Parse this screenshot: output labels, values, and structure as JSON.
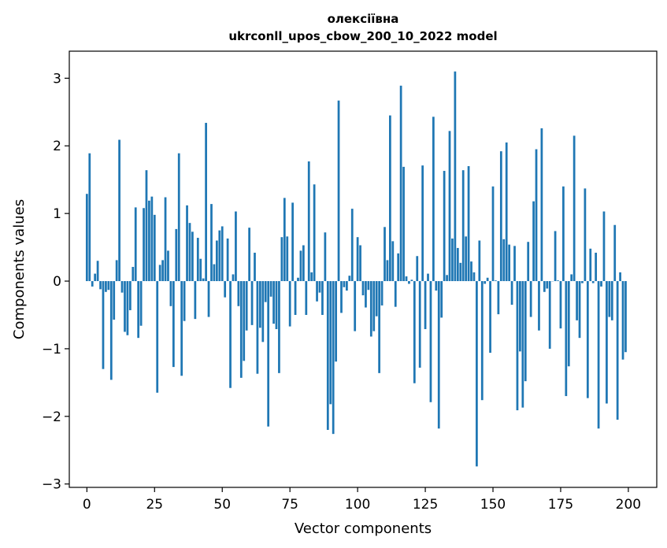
{
  "chart_data": {
    "type": "bar",
    "title": "олексіївна",
    "subtitle": "ukrconll_upos_cbow_200_10_2022 model",
    "xlabel": "Vector components",
    "ylabel": "Components values",
    "xlim": [
      -6.5,
      210.5
    ],
    "ylim": [
      -3.05,
      3.4
    ],
    "xticks": [
      0,
      25,
      50,
      75,
      100,
      125,
      150,
      175,
      200
    ],
    "yticks": [
      -3,
      -2,
      -1,
      0,
      1,
      2,
      3
    ],
    "xtick_labels": [
      "0",
      "25",
      "50",
      "75",
      "100",
      "125",
      "150",
      "175",
      "200"
    ],
    "ytick_labels": [
      "−3",
      "−2",
      "−1",
      "0",
      "1",
      "2",
      "3"
    ],
    "bar_color": "#1f77b4",
    "grid": false,
    "x": [
      0,
      1,
      2,
      3,
      4,
      5,
      6,
      7,
      8,
      9,
      10,
      11,
      12,
      13,
      14,
      15,
      16,
      17,
      18,
      19,
      20,
      21,
      22,
      23,
      24,
      25,
      26,
      27,
      28,
      29,
      30,
      31,
      32,
      33,
      34,
      35,
      36,
      37,
      38,
      39,
      40,
      41,
      42,
      43,
      44,
      45,
      46,
      47,
      48,
      49,
      50,
      51,
      52,
      53,
      54,
      55,
      56,
      57,
      58,
      59,
      60,
      61,
      62,
      63,
      64,
      65,
      66,
      67,
      68,
      69,
      70,
      71,
      72,
      73,
      74,
      75,
      76,
      77,
      78,
      79,
      80,
      81,
      82,
      83,
      84,
      85,
      86,
      87,
      88,
      89,
      90,
      91,
      92,
      93,
      94,
      95,
      96,
      97,
      98,
      99,
      100,
      101,
      102,
      103,
      104,
      105,
      106,
      107,
      108,
      109,
      110,
      111,
      112,
      113,
      114,
      115,
      116,
      117,
      118,
      119,
      120,
      121,
      122,
      123,
      124,
      125,
      126,
      127,
      128,
      129,
      130,
      131,
      132,
      133,
      134,
      135,
      136,
      137,
      138,
      139,
      140,
      141,
      142,
      143,
      144,
      145,
      146,
      147,
      148,
      149,
      150,
      151,
      152,
      153,
      154,
      155,
      156,
      157,
      158,
      159,
      160,
      161,
      162,
      163,
      164,
      165,
      166,
      167,
      168,
      169,
      170,
      171,
      172,
      173,
      174,
      175,
      176,
      177,
      178,
      179,
      180,
      181,
      182,
      183,
      184,
      185,
      186,
      187,
      188,
      189,
      190,
      191,
      192,
      193,
      194,
      195,
      196,
      197,
      198,
      199
    ],
    "values": [
      1.29,
      1.89,
      -0.08,
      0.11,
      0.3,
      -0.12,
      -1.3,
      -0.16,
      -0.13,
      -1.46,
      -0.57,
      0.31,
      2.09,
      -0.17,
      -0.75,
      -0.8,
      -0.43,
      0.21,
      1.09,
      -0.84,
      -0.66,
      1.08,
      1.64,
      1.19,
      1.25,
      0.98,
      -1.65,
      0.24,
      0.31,
      1.24,
      0.45,
      -0.37,
      -1.27,
      0.77,
      1.89,
      -1.4,
      -0.59,
      1.12,
      0.86,
      0.73,
      -0.56,
      0.64,
      0.33,
      0.04,
      2.34,
      -0.53,
      1.14,
      0.25,
      0.6,
      0.75,
      0.81,
      -0.24,
      0.63,
      -1.58,
      0.1,
      1.03,
      -0.37,
      -1.43,
      -1.18,
      -0.73,
      0.79,
      -0.65,
      0.42,
      -1.37,
      -0.69,
      -0.9,
      -0.31,
      -2.15,
      -0.23,
      -0.63,
      -0.71,
      -1.36,
      0.65,
      1.23,
      0.66,
      -0.67,
      1.16,
      -0.5,
      0.05,
      0.45,
      0.53,
      -0.5,
      1.77,
      0.13,
      1.43,
      -0.3,
      -0.17,
      -0.5,
      0.72,
      -2.2,
      -1.82,
      -2.26,
      -1.19,
      2.67,
      -0.47,
      -0.09,
      -0.14,
      0.08,
      1.07,
      -0.74,
      0.65,
      0.53,
      -0.21,
      -0.39,
      -0.13,
      -0.82,
      -0.74,
      -0.52,
      -1.36,
      -0.36,
      0.8,
      0.31,
      2.45,
      0.59,
      -0.38,
      0.41,
      2.89,
      1.69,
      0.07,
      -0.04,
      0.02,
      -1.51,
      0.37,
      -1.28,
      1.71,
      -0.71,
      0.11,
      -1.79,
      2.43,
      -0.14,
      -2.18,
      -0.54,
      1.63,
      0.09,
      2.22,
      0.63,
      3.1,
      0.49,
      0.27,
      1.64,
      0.66,
      1.7,
      0.29,
      0.13,
      -2.74,
      0.6,
      -1.76,
      -0.04,
      0.05,
      -1.06,
      1.4,
      0.01,
      -0.49,
      1.92,
      0.62,
      2.05,
      0.54,
      -0.35,
      0.52,
      -1.91,
      -1.04,
      -1.87,
      -1.48,
      0.58,
      -0.53,
      1.18,
      1.95,
      -0.73,
      2.26,
      -0.16,
      -0.11,
      -1.0,
      0.0,
      0.74,
      0.01,
      -0.7,
      1.4,
      -1.7,
      -1.26,
      0.1,
      2.15,
      -0.58,
      -0.84,
      -0.03,
      1.37,
      -1.73,
      0.48,
      -0.03,
      0.42,
      -2.18,
      -0.08,
      1.03,
      -1.81,
      -0.53,
      -0.58,
      0.83,
      -2.05,
      0.13,
      -1.16,
      -1.05
    ]
  }
}
